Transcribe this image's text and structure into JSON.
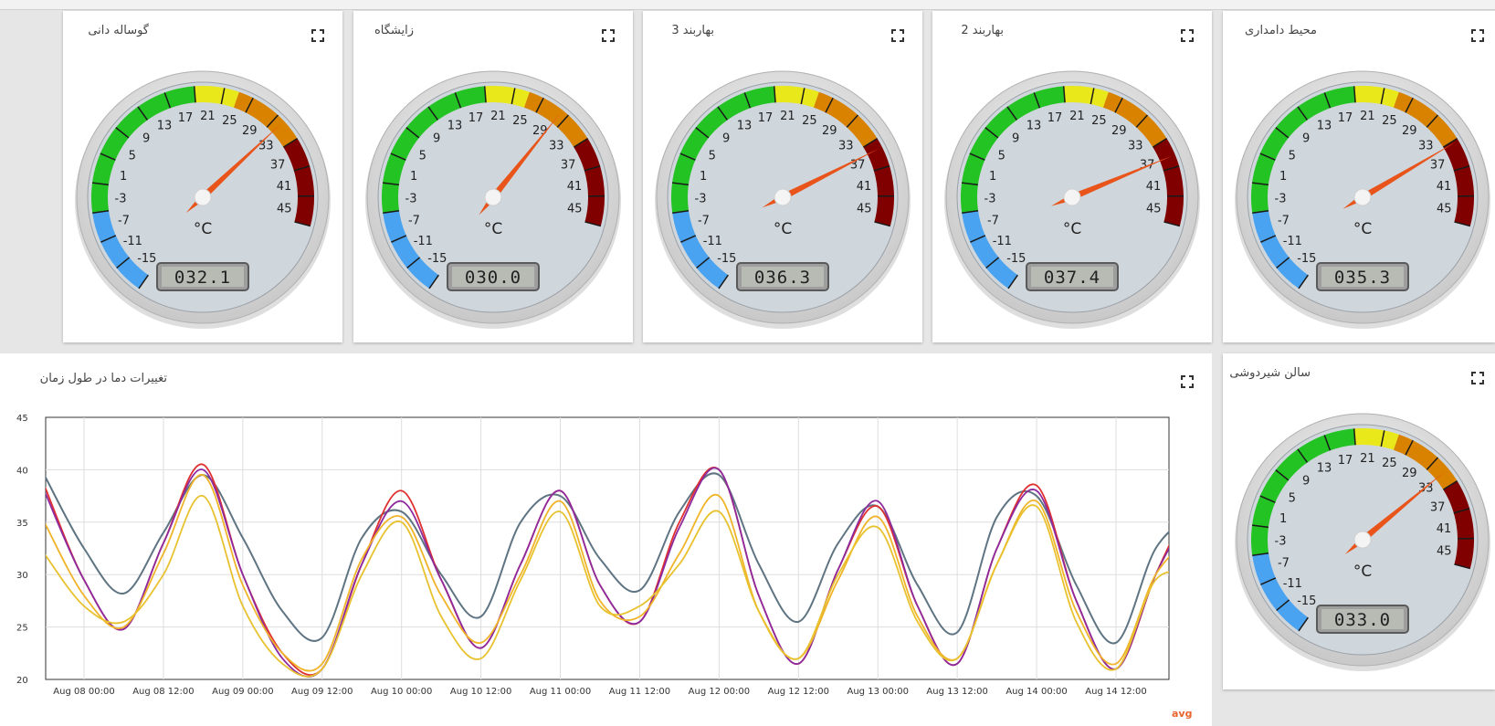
{
  "gauges": [
    {
      "title": "گوساله دانی",
      "value": 32.1,
      "display": "032.1"
    },
    {
      "title": "زایشگاه",
      "value": 30.0,
      "display": "030.0"
    },
    {
      "title": "بهاربند 3",
      "value": 36.3,
      "display": "036.3"
    },
    {
      "title": "بهاربند 2",
      "value": 37.4,
      "display": "037.4"
    },
    {
      "title": "محیط دامداری",
      "value": 35.3,
      "display": "035.3"
    },
    {
      "title": "سالن شیردوشی",
      "value": 33.0,
      "display": "033.0"
    }
  ],
  "gauge_scale": {
    "unit": "°C",
    "min": -17,
    "max": 47,
    "ticks": [
      "-15",
      "-11",
      "-7",
      "-3",
      "1",
      "5",
      "9",
      "13",
      "17",
      "21",
      "25",
      "29",
      "33",
      "37",
      "41",
      "45"
    ],
    "bands": [
      {
        "from": -17,
        "to": -5,
        "color": "#4aa3f0"
      },
      {
        "from": -5,
        "to": 19,
        "color": "#22c322"
      },
      {
        "from": 19,
        "to": 25,
        "color": "#e8e81a"
      },
      {
        "from": 25,
        "to": 35,
        "color": "#d98200"
      },
      {
        "from": 35,
        "to": 47,
        "color": "#800000"
      }
    ]
  },
  "chart": {
    "title": "تغییرات دما در طول زمان",
    "legend_label": "avg"
  },
  "chart_data": {
    "type": "line",
    "title": "تغییرات دما در طول زمان",
    "xlabel": "",
    "ylabel": "",
    "ylim": [
      20,
      45
    ],
    "yticks": [
      20,
      25,
      30,
      35,
      40,
      45
    ],
    "xticks": [
      "Aug 08 00:00",
      "Aug 08 12:00",
      "Aug 09 00:00",
      "Aug 09 12:00",
      "Aug 10 00:00",
      "Aug 10 12:00",
      "Aug 11 00:00",
      "Aug 11 12:00",
      "Aug 12 00:00",
      "Aug 12 12:00",
      "Aug 13 00:00",
      "Aug 13 12:00",
      "Aug 14 00:00",
      "Aug 14 12:00"
    ],
    "x_hours_from_first_tick": [
      -6,
      0,
      6,
      12,
      18,
      24,
      30,
      36,
      42,
      48,
      54,
      60,
      66,
      72,
      78,
      84,
      90,
      96,
      102,
      108,
      114,
      120,
      126,
      132,
      138,
      144,
      150,
      156,
      162,
      168
    ],
    "grid": true,
    "series": [
      {
        "color": "#5f7482",
        "values": [
          39.5,
          32.5,
          28.2,
          34,
          39.5,
          33.5,
          26.5,
          24,
          33.5,
          36,
          30,
          26,
          35,
          37.5,
          31.5,
          28.5,
          36,
          39.5,
          31,
          25.5,
          33,
          36.5,
          29,
          24.5,
          35.5,
          37.5,
          29,
          23.5,
          32.5,
          36
        ]
      },
      {
        "color": "#e03030",
        "values": [
          38.5,
          29.5,
          24.8,
          33,
          40.5,
          30,
          22.5,
          21,
          31,
          38,
          29.5,
          23,
          31,
          38,
          29,
          25.5,
          35,
          40,
          28,
          21.5,
          30.5,
          36.5,
          27,
          21.5,
          32.5,
          38.5,
          27.5,
          21,
          30,
          38
        ]
      },
      {
        "color": "#8e2a9e",
        "values": [
          38,
          29.5,
          24.8,
          33,
          40,
          30,
          22,
          21,
          31,
          37,
          29.5,
          23,
          31,
          38,
          29,
          25.5,
          34.5,
          40,
          28,
          21.5,
          30.5,
          37,
          27,
          21.5,
          32.5,
          38,
          27.5,
          21,
          30,
          37
        ]
      },
      {
        "color": "#f0b429",
        "values": [
          35,
          28,
          25,
          32,
          39.5,
          29,
          22.5,
          21.5,
          31.5,
          35.5,
          28,
          23.5,
          30,
          37,
          27.5,
          26,
          32,
          37.5,
          26.5,
          22,
          29.5,
          35.5,
          26,
          22,
          31,
          37,
          26.5,
          21.5,
          30,
          34
        ]
      },
      {
        "color": "#e8c22e",
        "values": [
          32,
          27,
          25.5,
          30,
          37.5,
          27,
          21.5,
          21,
          30,
          35,
          26,
          22,
          29.5,
          36,
          27,
          27,
          31,
          36,
          26.5,
          22,
          30,
          34.5,
          25.5,
          22,
          31,
          36.5,
          25.5,
          21,
          29.5,
          30
        ]
      }
    ]
  }
}
